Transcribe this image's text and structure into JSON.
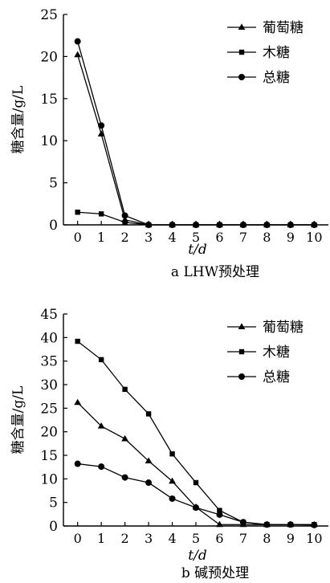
{
  "chart_data": [
    {
      "type": "line",
      "title": "a LHW预处理",
      "xlabel": "t/d",
      "ylabel": "糖含量/g/L",
      "x": [
        0,
        1,
        2,
        3,
        4,
        5,
        6,
        7,
        8,
        9,
        10
      ],
      "xlim": [
        -0.6,
        10.6
      ],
      "ylim": [
        0,
        25
      ],
      "yticks": [
        0,
        5,
        10,
        15,
        20,
        25
      ],
      "grid": false,
      "legend_position": "top-right",
      "series": [
        {
          "name": "葡萄糖",
          "marker": "triangle",
          "values": [
            20.2,
            10.8,
            0.6,
            0,
            0,
            0,
            0,
            0,
            0,
            0,
            0
          ]
        },
        {
          "name": "木糖",
          "marker": "square",
          "values": [
            1.5,
            1.3,
            0.3,
            0,
            0,
            0,
            0,
            0,
            0,
            0,
            0
          ]
        },
        {
          "name": "总糖",
          "marker": "circle",
          "values": [
            21.8,
            11.8,
            1.1,
            0,
            0,
            0,
            0,
            0,
            0,
            0,
            0
          ]
        }
      ]
    },
    {
      "type": "line",
      "title": "b 碱预处理",
      "xlabel": "t/d",
      "ylabel": "糖含量/g/L",
      "x": [
        0,
        1,
        2,
        3,
        4,
        5,
        6,
        7,
        8,
        9,
        10
      ],
      "xlim": [
        -0.6,
        10.6
      ],
      "ylim": [
        0,
        45
      ],
      "yticks": [
        0,
        5,
        10,
        15,
        20,
        25,
        30,
        35,
        40,
        45
      ],
      "grid": false,
      "legend_position": "top-right",
      "series": [
        {
          "name": "葡萄糖",
          "marker": "triangle",
          "values": [
            26.2,
            21.2,
            18.5,
            13.8,
            9.5,
            4.0,
            0.3,
            0.3,
            0.3,
            0.3,
            0.3
          ]
        },
        {
          "name": "木糖",
          "marker": "square",
          "values": [
            39.2,
            35.3,
            29.0,
            23.8,
            15.3,
            9.2,
            3.3,
            0.8,
            0.3,
            0.3,
            0.3
          ]
        },
        {
          "name": "总糖",
          "marker": "circle",
          "values": [
            13.2,
            12.6,
            10.3,
            9.2,
            5.8,
            3.9,
            2.4,
            0.8,
            0.3,
            0.3,
            0.2
          ]
        }
      ]
    }
  ]
}
